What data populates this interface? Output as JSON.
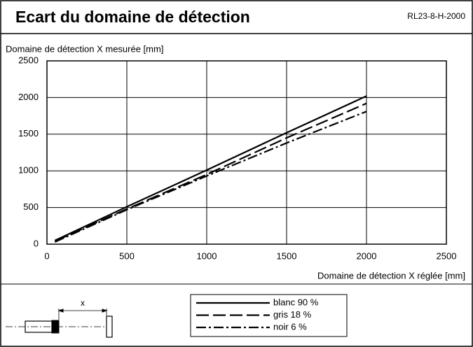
{
  "chart_data": {
    "type": "line",
    "title": "Ecart du domaine de détection",
    "subtitle": "RL23-8-H-2000",
    "ylabel": "Domaine de détection X mesurée [mm]",
    "xlabel": "Domaine de détection X réglée [mm]",
    "annotation": "x",
    "x": [
      50,
      500,
      1000,
      1500,
      2000
    ],
    "series": [
      {
        "name": "blanc 90 %",
        "color": "#000000",
        "dash": "solid",
        "values": [
          50,
          510,
          1010,
          1520,
          2020
        ]
      },
      {
        "name": "gris 18 %",
        "color": "#000000",
        "dash": "dashed",
        "values": [
          40,
          480,
          950,
          1450,
          1920
        ]
      },
      {
        "name": "noir 6 %",
        "color": "#000000",
        "dash": "dashdot",
        "values": [
          30,
          470,
          930,
          1380,
          1810
        ]
      }
    ],
    "xlim": [
      0,
      2500
    ],
    "xticks": [
      0,
      500,
      1000,
      1500,
      2000,
      2500
    ],
    "ylim": [
      0,
      2500
    ],
    "yticks": [
      0,
      500,
      1000,
      1500,
      2000,
      2500
    ],
    "grid": true
  }
}
